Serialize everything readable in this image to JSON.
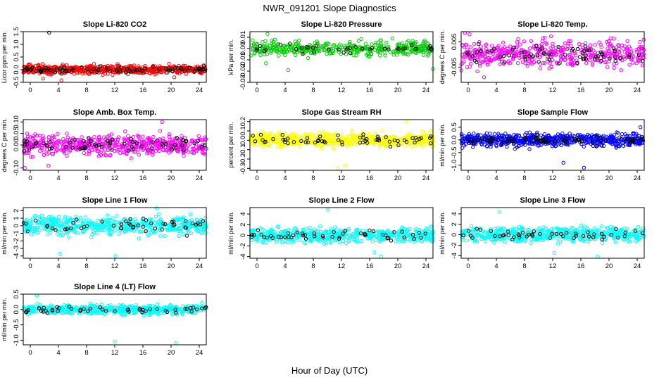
{
  "figure": {
    "title": "NWR_091201  Slope Diagnostics",
    "xlabel": "Hour of Day (UTC)"
  },
  "chart_data": [
    {
      "type": "scatter",
      "title": "Slope Li-820 CO2",
      "ylabel": "Licor ppm per min.",
      "xlim": [
        0,
        24
      ],
      "ylim": [
        -0.5,
        1.5
      ],
      "xticks": [
        "0",
        "4",
        "8",
        "12",
        "16",
        "20",
        "24"
      ],
      "yticks": [
        "-0.5",
        "0.0",
        "0.5",
        "1.0",
        "1.5"
      ],
      "ytick_values": [
        -0.5,
        0,
        0.5,
        1,
        1.5
      ],
      "main_color": "#ff0000",
      "secondary_color": "#000000",
      "spread": 0.14,
      "n_main": 560,
      "n_black": 90,
      "outliers": [
        [
          3.4,
          1.46
        ],
        [
          2.6,
          -0.35
        ],
        [
          19.8,
          -0.3
        ],
        [
          5.0,
          -0.42
        ]
      ]
    },
    {
      "type": "scatter",
      "title": "Slope Li-820 Pressure",
      "ylabel": "kPa per min.",
      "xlim": [
        0,
        24
      ],
      "ylim": [
        -0.03,
        0.015
      ],
      "xticks": [
        "0",
        "4",
        "8",
        "12",
        "16",
        "20",
        "24"
      ],
      "yticks": [
        "-0.03",
        "-0.02",
        "-0.01",
        "0.00",
        "0.01"
      ],
      "ytick_values": [
        -0.03,
        -0.02,
        -0.01,
        0,
        0.01
      ],
      "main_color": "#00cc00",
      "secondary_color": "#000000",
      "spread": 0.005,
      "n_main": 420,
      "n_black": 40,
      "outliers": [
        [
          2.3,
          0.013
        ],
        [
          2.1,
          -0.013
        ],
        [
          5.0,
          -0.019
        ],
        [
          24,
          -0.018
        ],
        [
          15.5,
          -0.007
        ]
      ]
    },
    {
      "type": "scatter",
      "title": "Slope Li-820 Temp.",
      "ylabel": "degrees C per min.",
      "xlim": [
        0,
        24
      ],
      "ylim": [
        -0.011,
        0.009
      ],
      "xticks": [
        "0",
        "4",
        "8",
        "12",
        "16",
        "20",
        "24"
      ],
      "yticks": [
        "-0.005",
        "0.005"
      ],
      "ytick_values": [
        -0.005,
        0.005
      ],
      "main_color": "#ff00ff",
      "secondary_color": "#000000",
      "spread": 0.0042,
      "n_main": 480,
      "n_black": 70,
      "outliers": [
        [
          0.5,
          0.0085
        ],
        [
          1.1,
          0.008
        ],
        [
          3.0,
          -0.009
        ]
      ]
    },
    {
      "type": "scatter",
      "title": "Slope Amb. Box Temp.",
      "ylabel": "degrees C per min.",
      "xlim": [
        0,
        24
      ],
      "ylim": [
        -0.11,
        0.11
      ],
      "xticks": [
        "0",
        "4",
        "8",
        "12",
        "16",
        "20",
        "24"
      ],
      "yticks": [
        "-0.10",
        "0.00",
        "0.05",
        "0.10"
      ],
      "ytick_values": [
        -0.1,
        0,
        0.05,
        0.1
      ],
      "main_color": "#ff00ff",
      "secondary_color": "#000000",
      "spread": 0.035,
      "n_main": 560,
      "n_black": 70,
      "outliers": [
        [
          18.2,
          0.1
        ],
        [
          0.2,
          -0.1
        ],
        [
          3.3,
          -0.09
        ]
      ]
    },
    {
      "type": "scatter",
      "title": "Slope Gas Stream RH",
      "ylabel": "percent per min.",
      "xlim": [
        0,
        24
      ],
      "ylim": [
        -0.32,
        0.22
      ],
      "xticks": [
        "0",
        "4",
        "8",
        "12",
        "16",
        "20",
        "24"
      ],
      "yticks": [
        "-0.3",
        "-0.2",
        "-0.1",
        "0.0",
        "0.1",
        "0.2"
      ],
      "ytick_values": [
        -0.3,
        -0.2,
        -0.1,
        0,
        0.1,
        0.2
      ],
      "main_color": "#ffff00",
      "secondary_color": "#000000",
      "spread": 0.06,
      "n_main": 600,
      "n_black": 60,
      "outliers": [
        [
          11.5,
          -0.3
        ],
        [
          12.5,
          -0.27
        ],
        [
          20.5,
          0.2
        ]
      ]
    },
    {
      "type": "scatter",
      "title": "Slope Sample Flow",
      "ylabel": "ml/min per min.",
      "xlim": [
        0,
        24
      ],
      "ylim": [
        -1.2,
        0.8
      ],
      "xticks": [
        "0",
        "4",
        "8",
        "12",
        "16",
        "20",
        "24"
      ],
      "yticks": [
        "-1.0",
        "-0.5",
        "0.0",
        "0.5"
      ],
      "ytick_values": [
        -1,
        -0.5,
        0,
        0.5
      ],
      "main_color": "#0000ff",
      "secondary_color": "#000000",
      "spread": 0.2,
      "n_main": 620,
      "n_black": 70,
      "outliers": [
        [
          16.1,
          -1.1
        ],
        [
          13.4,
          -0.9
        ],
        [
          23.5,
          0.5
        ]
      ]
    },
    {
      "type": "scatter",
      "title": "Slope Line 1 Flow",
      "ylabel": "ml/min per min.",
      "xlim": [
        0,
        24
      ],
      "ylim": [
        -4.3,
        2.4
      ],
      "xticks": [
        "0",
        "4",
        "8",
        "12",
        "16",
        "20",
        "24"
      ],
      "yticks": [
        "-4",
        "-3",
        "-2",
        "-1",
        "0",
        "1",
        "2"
      ],
      "ytick_values": [
        -4,
        -3,
        -2,
        -1,
        0,
        1,
        2
      ],
      "main_color": "#00ffff",
      "secondary_color": "#000000",
      "spread": 1.0,
      "n_main": 520,
      "n_black": 50,
      "outliers": [
        [
          12.1,
          -4.0
        ],
        [
          17.5,
          2.3
        ],
        [
          4.8,
          -3.7
        ]
      ]
    },
    {
      "type": "scatter",
      "title": "Slope Line 2 Flow",
      "ylabel": "ml/min per min.",
      "xlim": [
        0,
        24
      ],
      "ylim": [
        -4.3,
        5.2
      ],
      "xticks": [
        "0",
        "4",
        "8",
        "12",
        "16",
        "20",
        "24"
      ],
      "yticks": [
        "-4",
        "-2",
        "0",
        "2",
        "4"
      ],
      "ytick_values": [
        -4,
        -2,
        0,
        2,
        4
      ],
      "main_color": "#00ffff",
      "secondary_color": "#000000",
      "spread": 1.1,
      "n_main": 520,
      "n_black": 50,
      "outliers": [
        [
          16.3,
          -3.2
        ],
        [
          10.2,
          4.8
        ],
        [
          17.2,
          -4.0
        ]
      ]
    },
    {
      "type": "scatter",
      "title": "Slope Line 3 Flow",
      "ylabel": "ml/min per min.",
      "xlim": [
        0,
        24
      ],
      "ylim": [
        -4.5,
        5.2
      ],
      "xticks": [
        "0",
        "4",
        "8",
        "12",
        "16",
        "20",
        "24"
      ],
      "yticks": [
        "-4",
        "-2",
        "0",
        "2",
        "4"
      ],
      "ytick_values": [
        -4,
        -2,
        0,
        2,
        4
      ],
      "main_color": "#00ffff",
      "secondary_color": "#000000",
      "spread": 1.2,
      "n_main": 520,
      "n_black": 50,
      "outliers": [
        [
          12.2,
          -3.5
        ],
        [
          5.0,
          4.4
        ],
        [
          17.9,
          -4.2
        ]
      ]
    },
    {
      "type": "scatter",
      "title": "Slope Line 4 (LT) Flow",
      "ylabel": "ml/min per min.",
      "xlim": [
        0,
        24
      ],
      "ylim": [
        -1.15,
        0.5
      ],
      "xticks": [
        "0",
        "4",
        "8",
        "12",
        "16",
        "20",
        "24"
      ],
      "yticks": [
        "-1.0",
        "-0.5",
        "0.0",
        "0.5"
      ],
      "ytick_values": [
        -1,
        -0.5,
        0,
        0.5
      ],
      "main_color": "#00ffff",
      "secondary_color": "#000000",
      "spread": 0.12,
      "n_main": 520,
      "n_black": 50,
      "outliers": [
        [
          12.0,
          -1.05
        ],
        [
          20.0,
          -1.1
        ],
        [
          1.8,
          0.45
        ]
      ]
    }
  ]
}
